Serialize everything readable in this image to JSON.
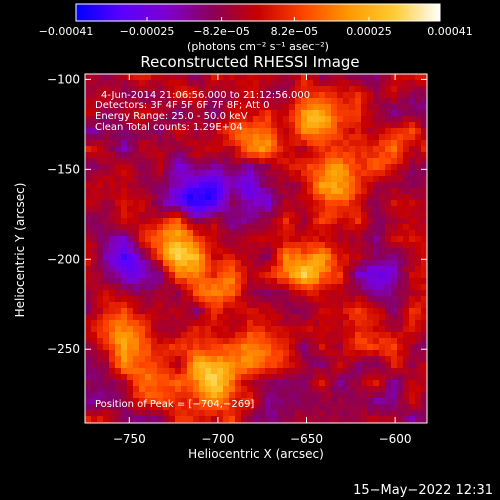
{
  "chart_data": {
    "type": "heatmap",
    "title": "Reconstructed RHESSI Image",
    "xlabel": "Heliocentric X (arcsec)",
    "ylabel": "Heliocentric Y (arcsec)",
    "xlim": [
      -775,
      -582
    ],
    "ylim": [
      -291,
      -97
    ],
    "x_ticks": [
      -750,
      -700,
      -650,
      -600
    ],
    "x_tick_labels": [
      "−750",
      "−700",
      "−650",
      "−600"
    ],
    "y_ticks": [
      -100,
      -150,
      -200,
      -250
    ],
    "y_tick_labels": [
      "−100",
      "−150",
      "−200",
      "−250"
    ],
    "colorbar": {
      "range": [
        -0.00041,
        0.00041
      ],
      "ticks": [
        -0.00041,
        -0.00025,
        -8.2e-05,
        8.2e-05,
        0.00025,
        0.00041
      ],
      "tick_labels": [
        "−0.00041",
        "−0.00025",
        "−8.2e−05",
        "8.2e−05",
        "0.00025",
        "0.00041"
      ],
      "unit": "(photons cm⁻² s⁻¹ asec⁻²)",
      "colors": [
        "#0000ff",
        "#5a00ff",
        "#7e00d0",
        "#8a0058",
        "#c80000",
        "#ff4400",
        "#ff9900",
        "#ffcc33",
        "#ffffff"
      ]
    },
    "peak": [
      -704,
      -269
    ],
    "hotspots": [
      {
        "x": -726,
        "y": -190,
        "level": 0.0004
      },
      {
        "x": -703,
        "y": -268,
        "level": 0.00041
      },
      {
        "x": -645,
        "y": -121,
        "level": 0.00033
      },
      {
        "x": -633,
        "y": -162,
        "level": 0.00031
      },
      {
        "x": -650,
        "y": -205,
        "level": 0.00028
      },
      {
        "x": -700,
        "y": -210,
        "level": 0.00022
      },
      {
        "x": -760,
        "y": -240,
        "level": 0.00024
      },
      {
        "x": -740,
        "y": -265,
        "level": 0.0002
      },
      {
        "x": -615,
        "y": -240,
        "level": 0.00018
      },
      {
        "x": -680,
        "y": -135,
        "level": 0.0002
      },
      {
        "x": -600,
        "y": -140,
        "level": 0.00016
      },
      {
        "x": -675,
        "y": -250,
        "level": 0.00015
      }
    ],
    "coldspots": [
      {
        "x": -715,
        "y": -165,
        "level": -0.00033
      },
      {
        "x": -748,
        "y": -205,
        "level": -0.00022
      },
      {
        "x": -685,
        "y": -160,
        "level": -0.00014
      },
      {
        "x": -610,
        "y": -205,
        "level": -0.00012
      }
    ]
  },
  "annotations": {
    "time_range": "4-Jun-2014 21:06:56.000 to 21:12:56.000",
    "detectors": "Detectors: 3F 4F 5F 6F 7F 8F; Att 0",
    "energy": "Energy Range: 25.0 - 50.0 keV",
    "method": "Clean     Total counts: 1.29E+04",
    "peak_text": "Position of Peak = [−704,−269]"
  },
  "footer": {
    "timestamp": "15−May−2022 12:31"
  }
}
